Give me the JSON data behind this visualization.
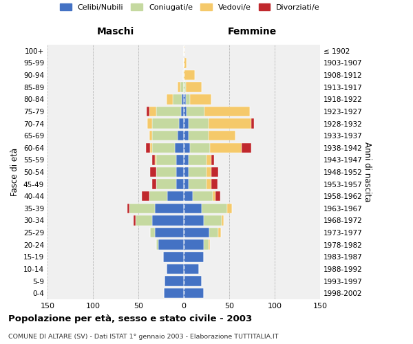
{
  "age_groups": [
    "0-4",
    "5-9",
    "10-14",
    "15-19",
    "20-24",
    "25-29",
    "30-34",
    "35-39",
    "40-44",
    "45-49",
    "50-54",
    "55-59",
    "60-64",
    "65-69",
    "70-74",
    "75-79",
    "80-84",
    "85-89",
    "90-94",
    "95-99",
    "100+"
  ],
  "birth_years": [
    "1998-2002",
    "1993-1997",
    "1988-1992",
    "1983-1987",
    "1978-1982",
    "1973-1977",
    "1968-1972",
    "1963-1967",
    "1958-1962",
    "1953-1957",
    "1948-1952",
    "1943-1947",
    "1938-1942",
    "1933-1937",
    "1928-1932",
    "1923-1927",
    "1918-1922",
    "1913-1917",
    "1908-1912",
    "1903-1907",
    "≤ 1902"
  ],
  "maschi": {
    "celibi": [
      22,
      21,
      19,
      23,
      28,
      32,
      35,
      32,
      18,
      8,
      8,
      8,
      10,
      7,
      5,
      3,
      2,
      0,
      0,
      0,
      0
    ],
    "coniugati": [
      0,
      0,
      0,
      0,
      2,
      5,
      18,
      28,
      20,
      22,
      22,
      22,
      25,
      28,
      30,
      27,
      10,
      4,
      1,
      0,
      0
    ],
    "vedovi": [
      0,
      0,
      0,
      0,
      0,
      0,
      0,
      0,
      0,
      0,
      0,
      2,
      2,
      3,
      5,
      8,
      7,
      3,
      0,
      0,
      0
    ],
    "divorziati": [
      0,
      0,
      0,
      0,
      0,
      0,
      2,
      2,
      8,
      5,
      7,
      3,
      5,
      0,
      0,
      3,
      0,
      0,
      0,
      0,
      0
    ]
  },
  "femmine": {
    "nubili": [
      22,
      20,
      17,
      22,
      22,
      28,
      22,
      20,
      10,
      5,
      5,
      5,
      7,
      5,
      5,
      3,
      2,
      0,
      0,
      0,
      0
    ],
    "coniugate": [
      0,
      0,
      0,
      0,
      5,
      10,
      20,
      28,
      22,
      20,
      20,
      20,
      22,
      22,
      22,
      20,
      5,
      2,
      0,
      0,
      0
    ],
    "vedove": [
      0,
      0,
      0,
      0,
      2,
      3,
      2,
      5,
      3,
      5,
      5,
      5,
      35,
      30,
      47,
      50,
      23,
      18,
      12,
      3,
      1
    ],
    "divorziate": [
      0,
      0,
      0,
      0,
      0,
      0,
      0,
      0,
      5,
      7,
      8,
      3,
      10,
      0,
      3,
      0,
      0,
      0,
      0,
      0,
      0
    ]
  },
  "colors": {
    "celibi": "#4472c4",
    "coniugati": "#c5d9a0",
    "vedovi": "#f5c96a",
    "divorziati": "#c0282d"
  },
  "legend_labels": [
    "Celibi/Nubili",
    "Coniugati/e",
    "Vedovi/e",
    "Divorziati/e"
  ],
  "title": "Popolazione per età, sesso e stato civile - 2003",
  "subtitle": "COMUNE DI ALTARE (SV) - Dati ISTAT 1° gennaio 2003 - Elaborazione TUTTITALIA.IT",
  "xlabel_left": "Maschi",
  "xlabel_right": "Femmine",
  "ylabel_left": "Fasce di età",
  "ylabel_right": "Anni di nascita",
  "xlim": 150,
  "bg_color": "#f0f0f0",
  "plot_bg": "#ffffff"
}
